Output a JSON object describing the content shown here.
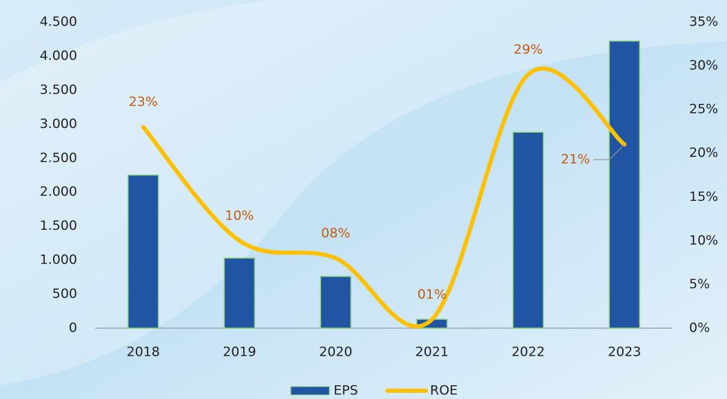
{
  "chart_data": {
    "type": "bar_line",
    "categories": [
      "2018",
      "2019",
      "2020",
      "2021",
      "2022",
      "2023"
    ],
    "series": [
      {
        "name": "EPS",
        "type": "bar",
        "color": "#2155a3",
        "values": [
          2250,
          1030,
          760,
          130,
          2880,
          4220
        ]
      },
      {
        "name": "ROE",
        "type": "line",
        "axis": "y2",
        "color": "#ffc000",
        "values": [
          23,
          10,
          8,
          1,
          29,
          21
        ],
        "value_labels": [
          "23%",
          "10%",
          "08%",
          "01%",
          "29%",
          "21%"
        ]
      }
    ],
    "ylim": [
      0,
      4500
    ],
    "yticks": [
      0,
      500,
      {
        "value": 1000,
        "label": "1.000"
      },
      {
        "value": 1500,
        "label": "1.500"
      },
      {
        "value": 2000,
        "label": "2.000"
      },
      {
        "value": 2500,
        "label": "2.500"
      },
      {
        "value": 3000,
        "label": "3.000"
      },
      {
        "value": 3500,
        "label": "3.500"
      },
      {
        "value": 4000,
        "label": "4.000"
      },
      {
        "value": 4500,
        "label": "4.500"
      }
    ],
    "y2lim": [
      0,
      35
    ],
    "y2ticks": [
      {
        "value": 0,
        "label": "0%"
      },
      {
        "value": 5,
        "label": "5%"
      },
      {
        "value": 10,
        "label": "10%"
      },
      {
        "value": 15,
        "label": "15%"
      },
      {
        "value": 20,
        "label": "20%"
      },
      {
        "value": 25,
        "label": "25%"
      },
      {
        "value": 30,
        "label": "30%"
      },
      {
        "value": 35,
        "label": "35%"
      }
    ],
    "legend": "bottom"
  }
}
